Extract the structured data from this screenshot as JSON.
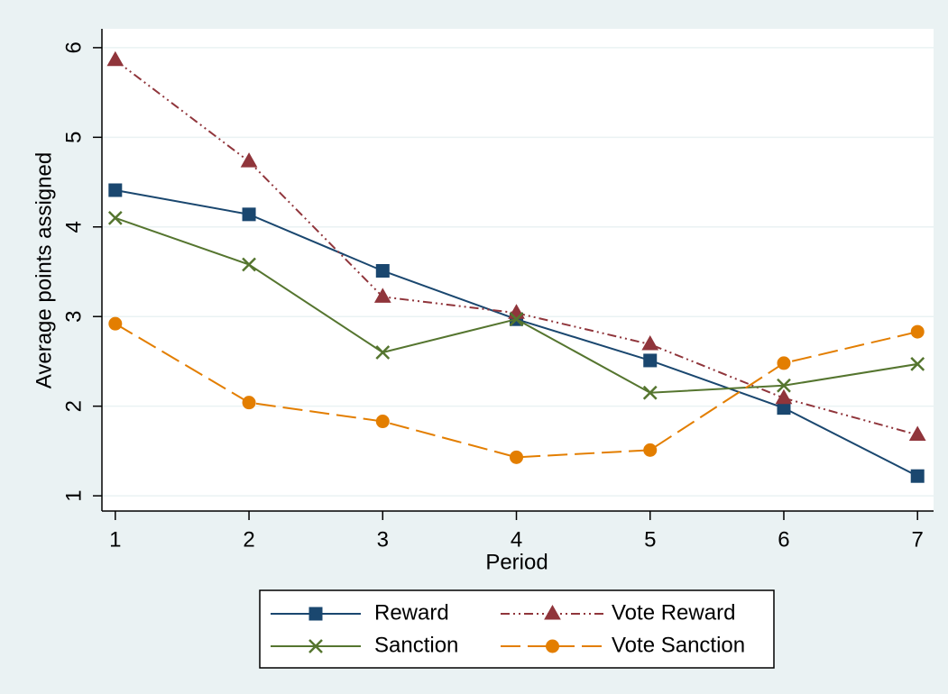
{
  "chart_data": {
    "type": "line",
    "x_label": "Period",
    "y_label": "Average points assigned",
    "x": [
      1,
      2,
      3,
      4,
      5,
      6,
      7
    ],
    "series": [
      {
        "name": "Reward",
        "color": "#1a476f",
        "values": [
          4.41,
          4.14,
          3.51,
          2.97,
          2.51,
          1.98,
          1.22
        ]
      },
      {
        "name": "Vote Reward",
        "color": "#90353b",
        "values": [
          5.86,
          4.73,
          3.22,
          3.04,
          2.69,
          2.09,
          1.68
        ]
      },
      {
        "name": "Sanction",
        "color": "#55752f",
        "values": [
          4.1,
          3.58,
          2.6,
          2.97,
          2.15,
          2.23,
          2.47
        ]
      },
      {
        "name": "Vote Sanction",
        "color": "#e37e00",
        "values": [
          2.92,
          2.04,
          1.83,
          1.43,
          1.51,
          2.48,
          2.83
        ]
      }
    ],
    "xlim": [
      0.9,
      7.12
    ],
    "xticks": [
      1,
      2,
      3,
      4,
      5,
      6,
      7
    ],
    "ylim": [
      0.83,
      6.21
    ],
    "yticks": [
      1,
      2,
      3,
      4,
      5,
      6
    ],
    "grid": true
  }
}
